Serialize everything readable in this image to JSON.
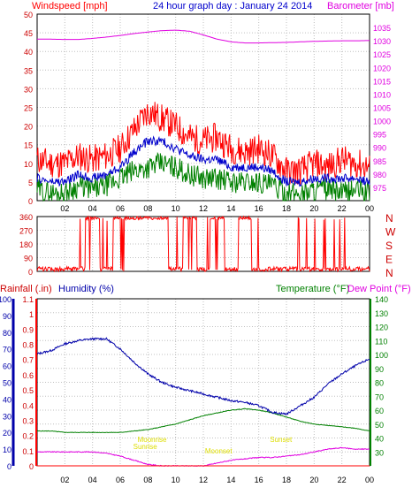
{
  "header": {
    "left_label": "Windspeed [mph]",
    "title": "24 hour graph day : January 24 2014",
    "right_label": "Barometer [mb]"
  },
  "bottom_header": {
    "rainfall_label": "Rainfall (.in)",
    "humidity_label": "Humidity (%)",
    "temperature_label": "Temperature (°F)",
    "dewpoint_label": "Dew Point (°F)"
  },
  "colors": {
    "wind_gust": "#ff0000",
    "wind_avg": "#0000cc",
    "wind_low": "#008000",
    "barometer": "#e000e0",
    "direction": "#ff0000",
    "rainfall": "#ff0000",
    "humidity": "#0000aa",
    "temperature": "#008000",
    "dewpoint": "#e000e0",
    "annotation": "#dddd00",
    "grid": "#c0c0c0"
  },
  "chart_data": [
    {
      "type": "line",
      "x": [
        0,
        1,
        2,
        3,
        4,
        5,
        6,
        7,
        8,
        9,
        10,
        11,
        12,
        13,
        14,
        15,
        16,
        17,
        18,
        19,
        20,
        21,
        22,
        23,
        24
      ],
      "x_tick_labels": [
        "02",
        "04",
        "06",
        "08",
        "10",
        "12",
        "14",
        "16",
        "18",
        "20",
        "22",
        "00"
      ],
      "left_axis": {
        "label": "Windspeed [mph]",
        "ylim": [
          0,
          50
        ],
        "ticks": [
          0,
          5,
          10,
          15,
          20,
          25,
          30,
          35,
          40,
          45,
          50
        ]
      },
      "right_axis": {
        "label": "Barometer [mb]",
        "ylim": [
          970,
          1040
        ],
        "ticks": [
          975,
          980,
          985,
          990,
          995,
          1000,
          1005,
          1010,
          1015,
          1020,
          1025,
          1030,
          1035
        ]
      },
      "series": [
        {
          "name": "Wind Gust",
          "axis": "left",
          "values": [
            11,
            10,
            10,
            12,
            11,
            12,
            14,
            19,
            24,
            22,
            20,
            17,
            16,
            17,
            14,
            13,
            14,
            12,
            8,
            8,
            10,
            9,
            11,
            10,
            9
          ]
        },
        {
          "name": "Wind Avg",
          "axis": "left",
          "values": [
            6,
            5,
            5,
            7,
            6,
            7,
            9,
            13,
            16,
            16,
            14,
            12,
            11,
            11,
            9,
            9,
            9,
            8,
            5,
            5,
            6,
            6,
            6,
            6,
            5
          ]
        },
        {
          "name": "Wind Low",
          "axis": "left",
          "values": [
            3,
            2,
            2,
            4,
            3,
            4,
            6,
            8,
            9,
            10,
            9,
            7,
            6,
            6,
            5,
            5,
            5,
            4,
            2,
            2,
            3,
            3,
            2,
            3,
            2
          ]
        },
        {
          "name": "Barometer",
          "axis": "right",
          "values": [
            1030.6,
            1030.6,
            1030.5,
            1030.5,
            1030.9,
            1031.4,
            1032.0,
            1032.7,
            1033.3,
            1033.8,
            1034.0,
            1033.6,
            1032.2,
            1030.6,
            1029.6,
            1029.2,
            1029.2,
            1029.3,
            1029.4,
            1029.6,
            1029.8,
            1029.9,
            1030.0,
            1030.0,
            1030.1
          ]
        }
      ]
    },
    {
      "type": "scatter",
      "x": [
        0,
        1,
        2,
        3,
        4,
        5,
        6,
        7,
        8,
        9,
        10,
        11,
        12,
        13,
        14,
        15,
        16,
        17,
        18,
        19,
        20,
        21,
        22,
        23,
        24
      ],
      "x_tick_labels": [
        "02",
        "04",
        "06",
        "08",
        "10",
        "12",
        "14",
        "16",
        "18",
        "20",
        "22",
        "00"
      ],
      "left_axis": {
        "ylim": [
          0,
          360
        ],
        "ticks": [
          0,
          90,
          180,
          270,
          360
        ]
      },
      "right_axis": {
        "ticks": [
          "N",
          "W",
          "S",
          "E",
          "N"
        ]
      },
      "series": [
        {
          "name": "Wind Direction",
          "values": [
            20,
            15,
            10,
            15,
            350,
            15,
            350,
            355,
            355,
            350,
            10,
            350,
            15,
            355,
            10,
            350,
            10,
            15,
            10,
            5,
            10,
            15,
            20,
            25,
            25
          ]
        }
      ]
    },
    {
      "type": "line",
      "x": [
        0,
        1,
        2,
        3,
        4,
        5,
        6,
        7,
        8,
        9,
        10,
        11,
        12,
        13,
        14,
        15,
        16,
        17,
        18,
        19,
        20,
        21,
        22,
        23,
        24
      ],
      "x_tick_labels": [
        "02",
        "04",
        "06",
        "08",
        "10",
        "12",
        "14",
        "16",
        "18",
        "20",
        "22",
        "00"
      ],
      "left_axis_rain": {
        "label": "Rainfall (.in)",
        "ylim": [
          0,
          1.1
        ],
        "ticks": [
          0,
          0.1,
          0.2,
          0.3,
          0.4,
          0.5,
          0.6,
          0.7,
          0.8,
          0.9,
          1,
          1.1
        ]
      },
      "left_axis_humidity": {
        "label": "Humidity (%)",
        "ylim": [
          0,
          100
        ],
        "ticks": [
          0,
          10,
          20,
          30,
          40,
          50,
          60,
          70,
          80,
          90,
          100
        ]
      },
      "right_axis": {
        "label": "Temperature (°F)",
        "ylim": [
          20,
          140
        ],
        "ticks": [
          30,
          40,
          50,
          60,
          70,
          80,
          90,
          100,
          110,
          120,
          130,
          140
        ]
      },
      "series": [
        {
          "name": "Humidity",
          "axis": "humidity",
          "values": [
            67,
            69,
            73,
            75,
            76,
            76,
            70,
            62,
            55,
            50,
            47,
            45,
            43,
            41,
            39,
            38,
            36,
            32,
            31,
            36,
            41,
            49,
            55,
            60,
            64
          ]
        },
        {
          "name": "Temperature",
          "axis": "temp",
          "values": [
            45,
            45,
            44,
            44,
            44,
            44,
            44,
            45,
            46,
            48,
            50,
            53,
            56,
            58,
            60,
            61,
            60,
            58,
            55,
            52,
            50,
            49,
            48,
            47,
            45
          ]
        },
        {
          "name": "Dew Point",
          "axis": "temp",
          "values": [
            30,
            30,
            30,
            30,
            30,
            29,
            27,
            24,
            21,
            20,
            20,
            20,
            20,
            22,
            24,
            25,
            26,
            26,
            27,
            28,
            30,
            32,
            33,
            32,
            32
          ]
        },
        {
          "name": "Rainfall",
          "axis": "rain",
          "values": [
            0,
            0,
            0,
            0,
            0,
            0,
            0,
            0,
            0,
            0,
            0,
            0,
            0,
            0,
            0,
            0,
            0,
            0,
            0,
            0,
            0,
            0,
            0,
            0,
            0
          ]
        }
      ],
      "annotations": [
        "Moonrise",
        "Sunrise",
        "Moonset",
        "Sunset"
      ],
      "annotation_hours": [
        8.3,
        7.8,
        13.1,
        17.6
      ]
    }
  ]
}
